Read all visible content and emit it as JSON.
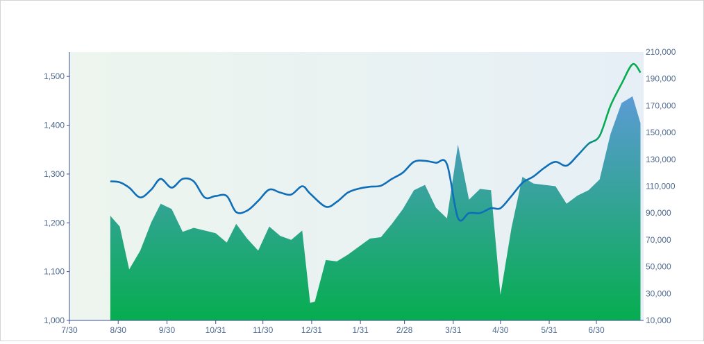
{
  "chart_data": {
    "type": "area",
    "x_ticks": [
      "7/30",
      "8/30",
      "9/30",
      "10/31",
      "11/30",
      "12/31",
      "1/31",
      "2/28",
      "3/31",
      "4/30",
      "5/31",
      "6/30"
    ],
    "y_left": {
      "ticks": [
        1000,
        1100,
        1200,
        1300,
        1400,
        1500
      ],
      "tick_labels": [
        "1,000",
        "1,100",
        "1,200",
        "1,300",
        "1,400",
        "1,500"
      ],
      "range": [
        1000,
        1550
      ]
    },
    "y_right": {
      "ticks": [
        10000,
        30000,
        50000,
        70000,
        90000,
        110000,
        130000,
        150000,
        170000,
        190000,
        210000
      ],
      "tick_labels": [
        "10,000",
        "30,000",
        "50,000",
        "70,000",
        "90,000",
        "110,000",
        "130,000",
        "150,000",
        "170,000",
        "190,000",
        "210,000"
      ],
      "range": [
        10000,
        210000
      ]
    },
    "grid": false,
    "legend": "none",
    "series": [
      {
        "kind": "area",
        "axis": "right",
        "colors": {
          "top": "#5b9bd5",
          "bottom": "#06ad4f"
        },
        "points": [
          [
            "8/25",
            88000
          ],
          [
            "8/31",
            80000
          ],
          [
            "9/6",
            48000
          ],
          [
            "9/13",
            62000
          ],
          [
            "9/20",
            83000
          ],
          [
            "9/26",
            97000
          ],
          [
            "10/3",
            93000
          ],
          [
            "10/10",
            76000
          ],
          [
            "10/17",
            79000
          ],
          [
            "10/24",
            77000
          ],
          [
            "10/31",
            75000
          ],
          [
            "11/7",
            68000
          ],
          [
            "11/13",
            82000
          ],
          [
            "11/20",
            71000
          ],
          [
            "11/27",
            62000
          ],
          [
            "12/4",
            80000
          ],
          [
            "12/11",
            73000
          ],
          [
            "12/18",
            70000
          ],
          [
            "12/25",
            77000
          ],
          [
            "12/30",
            23000
          ],
          [
            "1/2",
            24000
          ],
          [
            "1/9",
            55000
          ],
          [
            "1/16",
            54000
          ],
          [
            "1/23",
            59000
          ],
          [
            "1/30",
            65000
          ],
          [
            "2/6",
            71000
          ],
          [
            "2/13",
            72000
          ],
          [
            "2/20",
            82000
          ],
          [
            "2/27",
            93000
          ],
          [
            "3/6",
            107000
          ],
          [
            "3/13",
            111000
          ],
          [
            "3/20",
            94000
          ],
          [
            "3/27",
            86000
          ],
          [
            "4/3",
            141000
          ],
          [
            "4/10",
            100000
          ],
          [
            "4/17",
            108000
          ],
          [
            "4/24",
            107000
          ],
          [
            "4/30",
            29000
          ],
          [
            "5/7",
            79000
          ],
          [
            "5/14",
            117000
          ],
          [
            "5/21",
            112000
          ],
          [
            "5/28",
            111000
          ],
          [
            "6/4",
            110000
          ],
          [
            "6/11",
            97000
          ],
          [
            "6/18",
            103000
          ],
          [
            "6/25",
            107000
          ],
          [
            "7/2",
            115000
          ],
          [
            "7/9",
            149000
          ],
          [
            "7/16",
            172000
          ],
          [
            "7/23",
            177000
          ],
          [
            "7/28",
            157000
          ]
        ]
      },
      {
        "kind": "line",
        "axis": "left",
        "colors": {
          "start": "#0e6eb8",
          "end": "#06ad4f"
        },
        "points": [
          [
            "8/25",
            1285
          ],
          [
            "8/31",
            1283
          ],
          [
            "9/6",
            1272
          ],
          [
            "9/13",
            1252
          ],
          [
            "9/20",
            1268
          ],
          [
            "9/26",
            1290
          ],
          [
            "10/3",
            1272
          ],
          [
            "10/10",
            1290
          ],
          [
            "10/17",
            1285
          ],
          [
            "10/24",
            1252
          ],
          [
            "10/31",
            1255
          ],
          [
            "11/7",
            1255
          ],
          [
            "11/13",
            1222
          ],
          [
            "11/20",
            1225
          ],
          [
            "11/27",
            1245
          ],
          [
            "12/4",
            1268
          ],
          [
            "12/11",
            1262
          ],
          [
            "12/18",
            1258
          ],
          [
            "12/25",
            1275
          ],
          [
            "12/30",
            1260
          ],
          [
            "1/9",
            1233
          ],
          [
            "1/16",
            1243
          ],
          [
            "1/23",
            1262
          ],
          [
            "1/30",
            1270
          ],
          [
            "2/6",
            1274
          ],
          [
            "2/13",
            1276
          ],
          [
            "2/20",
            1290
          ],
          [
            "2/27",
            1303
          ],
          [
            "3/6",
            1325
          ],
          [
            "3/13",
            1327
          ],
          [
            "3/20",
            1323
          ],
          [
            "3/27",
            1320
          ],
          [
            "4/3",
            1210
          ],
          [
            "4/10",
            1220
          ],
          [
            "4/17",
            1220
          ],
          [
            "4/24",
            1230
          ],
          [
            "4/30",
            1230
          ],
          [
            "5/7",
            1255
          ],
          [
            "5/14",
            1282
          ],
          [
            "5/21",
            1295
          ],
          [
            "5/28",
            1313
          ],
          [
            "6/4",
            1325
          ],
          [
            "6/11",
            1317
          ],
          [
            "6/18",
            1338
          ],
          [
            "6/25",
            1362
          ],
          [
            "7/2",
            1378
          ],
          [
            "7/9",
            1440
          ],
          [
            "7/16",
            1485
          ],
          [
            "7/23",
            1525
          ],
          [
            "7/28",
            1508
          ]
        ]
      }
    ]
  }
}
